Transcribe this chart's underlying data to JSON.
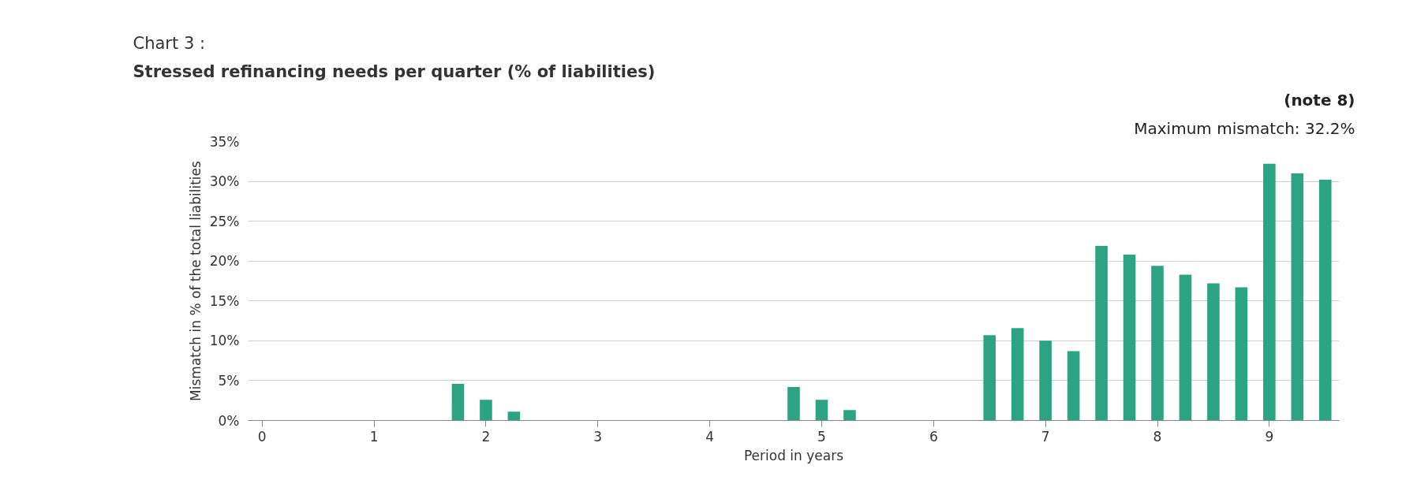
{
  "chart_data": {
    "type": "bar",
    "title": "Chart 3 :",
    "subtitle": "Stressed refinancing needs per quarter  (% of liabilities)",
    "xlabel": "Period in years",
    "ylabel": "Mismatch in % of the total liabilities",
    "annotations": [
      "(note 8)",
      "Maximum mismatch: 32.2%"
    ],
    "x": [
      1.75,
      2,
      2.25,
      4.75,
      5,
      5.25,
      6.5,
      6.75,
      7,
      7.25,
      7.5,
      7.75,
      8,
      8.25,
      8.5,
      8.75,
      9,
      9.25,
      9.5
    ],
    "values": [
      4.6,
      2.6,
      1.1,
      4.2,
      2.6,
      1.3,
      10.7,
      11.6,
      10.0,
      8.7,
      21.9,
      20.8,
      19.4,
      18.3,
      17.2,
      16.7,
      32.2,
      31.0,
      30.2
    ],
    "color": "#2ca383",
    "xlim": [
      -0.125,
      9.625
    ],
    "xticks": [
      0,
      1,
      2,
      3,
      4,
      5,
      6,
      7,
      8,
      9
    ],
    "ylim": [
      0,
      35
    ],
    "yticks": [
      {
        "value": 0,
        "label": "0%"
      },
      {
        "value": 5,
        "label": "5%"
      },
      {
        "value": 10,
        "label": "10%"
      },
      {
        "value": 15,
        "label": "15%"
      },
      {
        "value": 20,
        "label": "20%"
      },
      {
        "value": 25,
        "label": "25%"
      },
      {
        "value": 30,
        "label": "30%"
      },
      {
        "value": 35,
        "label": "35%"
      }
    ],
    "grid": "y"
  }
}
